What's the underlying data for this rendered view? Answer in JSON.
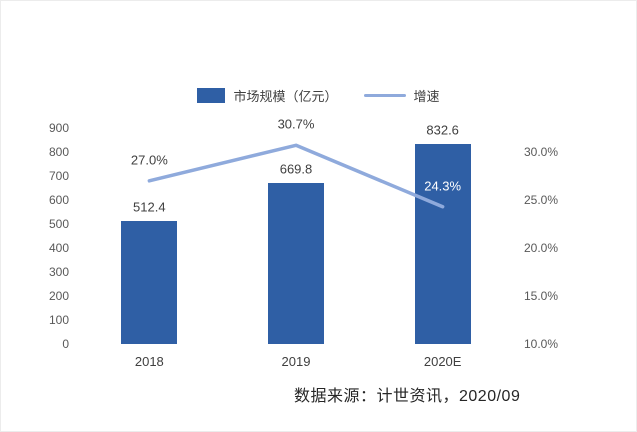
{
  "legend": {
    "bar_label": "市场规模（亿元）",
    "line_label": "增速"
  },
  "source_note": "数据来源：计世资讯，2020/09",
  "colors": {
    "bar": "#2F5FA5",
    "line": "#8FAADC",
    "label_dark": "#404040",
    "label_light": "#FFFFFF",
    "axis_text": "#595959"
  },
  "chart_data": {
    "type": "bar",
    "subtype": "bar-line-combo",
    "categories": [
      "2018",
      "2019",
      "2020E"
    ],
    "series": [
      {
        "name": "市场规模（亿元）",
        "kind": "bar",
        "axis": "left",
        "values": [
          512.4,
          669.8,
          832.6
        ],
        "labels": [
          "512.4",
          "669.8",
          "832.6"
        ]
      },
      {
        "name": "增速",
        "kind": "line",
        "axis": "right",
        "values": [
          27.0,
          30.7,
          24.3
        ],
        "labels": [
          "27.0%",
          "30.7%",
          "24.3%"
        ],
        "label_colors": [
          "#404040",
          "#404040",
          "#FFFFFF"
        ]
      }
    ],
    "left_axis": {
      "min": 0,
      "max": 900,
      "ticks": [
        0,
        100,
        200,
        300,
        400,
        500,
        600,
        700,
        800,
        900
      ]
    },
    "right_axis": {
      "min": 10,
      "max": 32.5,
      "ticks": [
        10,
        15,
        20,
        25,
        30
      ],
      "tick_format": "percent-one-decimal"
    },
    "legend_position": "top",
    "grid": false,
    "title": ""
  }
}
